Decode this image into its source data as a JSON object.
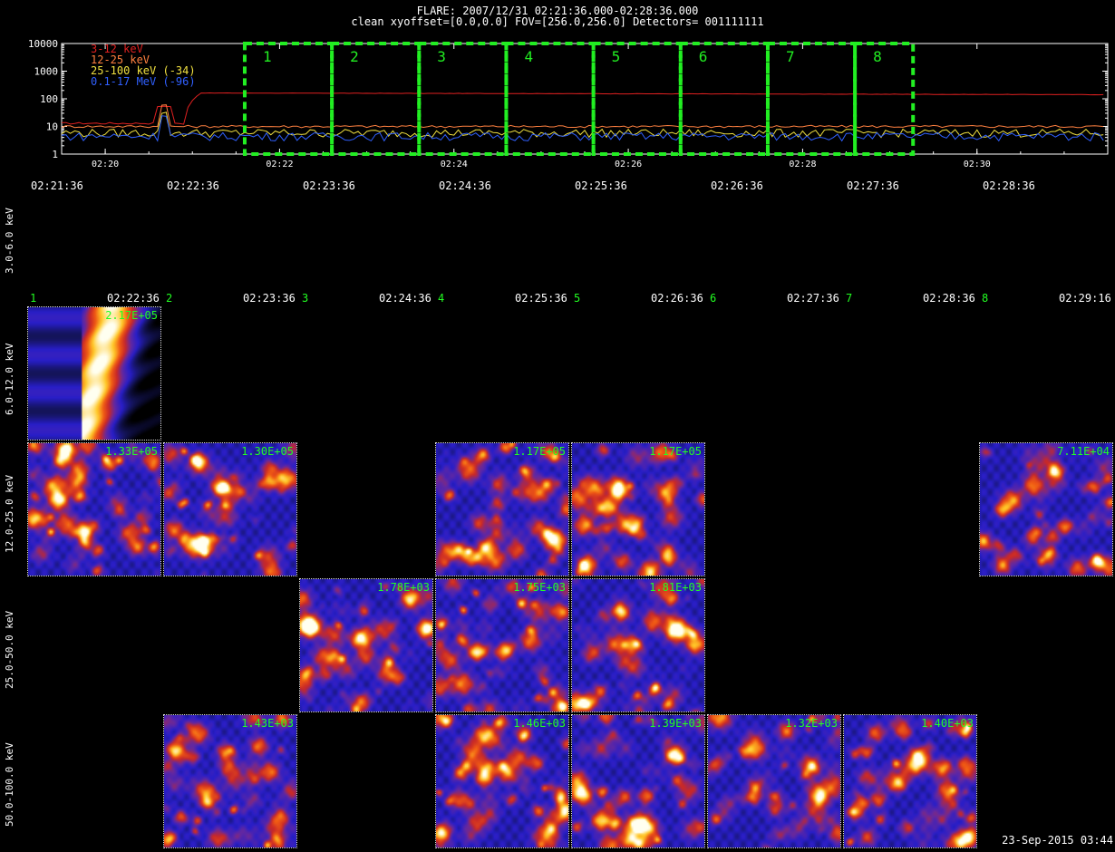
{
  "header": {
    "line1": "FLARE: 2007/12/31 02:21:36.000-02:28:36.000",
    "line2": "clean   xyoffset=[0.0,0.0]   FOV=[256.0,256.0]   Detectors= 001111111"
  },
  "lightcurve": {
    "y_ticks": [
      "10000",
      "1000",
      "100",
      "10",
      "1"
    ],
    "x_ticks": [
      "02:20",
      "02:22",
      "02:24",
      "02:26",
      "02:28",
      "02:30"
    ],
    "x_range": [
      "02:19:30",
      "02:31:30"
    ],
    "y_scale": "log",
    "y_range": [
      1,
      10000
    ],
    "legend": [
      {
        "label": "3-12 keV",
        "color": "#e02020"
      },
      {
        "label": "12-25 keV",
        "color": "#ff8040"
      },
      {
        "label": "25-100 keV (-34)",
        "color": "#f0e040"
      },
      {
        "label": "0.1-17 MeV (-96)",
        "color": "#3060ff"
      }
    ],
    "interval_color": "#22ee22",
    "interval_labels": [
      "1",
      "2",
      "3",
      "4",
      "5",
      "6",
      "7",
      "8"
    ]
  },
  "time_axis_top": [
    "02:21:36",
    "02:22:36",
    "02:23:36",
    "02:24:36",
    "02:25:36",
    "02:26:36",
    "02:27:36",
    "02:28:36"
  ],
  "segments": [
    {
      "num": "1",
      "end": "02:22:36"
    },
    {
      "num": "2",
      "end": "02:23:36"
    },
    {
      "num": "3",
      "end": "02:24:36"
    },
    {
      "num": "4",
      "end": "02:25:36"
    },
    {
      "num": "5",
      "end": "02:26:36"
    },
    {
      "num": "6",
      "end": "02:27:36"
    },
    {
      "num": "7",
      "end": "02:28:36"
    },
    {
      "num": "8",
      "end": "02:29:16"
    }
  ],
  "energy_rows": [
    "3.0-6.0 keV",
    "6.0-12.0 keV",
    "12.0-25.0 keV",
    "25.0-50.0 keV",
    "50.0-100.0 keV"
  ],
  "images": [
    {
      "row": 1,
      "col": 0,
      "peak": "2.17E+05",
      "kind": "ridge"
    },
    {
      "row": 2,
      "col": 0,
      "peak": "1.33E+05",
      "kind": "noise"
    },
    {
      "row": 2,
      "col": 1,
      "peak": "1.30E+05",
      "kind": "noise"
    },
    {
      "row": 2,
      "col": 3,
      "peak": "1.17E+05",
      "kind": "noise"
    },
    {
      "row": 2,
      "col": 4,
      "peak": "1.17E+05",
      "kind": "noise"
    },
    {
      "row": 2,
      "col": 7,
      "peak": "7.11E+04",
      "kind": "noise"
    },
    {
      "row": 3,
      "col": 2,
      "peak": "1.78E+03",
      "kind": "noise"
    },
    {
      "row": 3,
      "col": 3,
      "peak": "1.75E+03",
      "kind": "noise"
    },
    {
      "row": 3,
      "col": 4,
      "peak": "1.81E+03",
      "kind": "noise"
    },
    {
      "row": 4,
      "col": 1,
      "peak": "1.43E+03",
      "kind": "noise"
    },
    {
      "row": 4,
      "col": 3,
      "peak": "1.46E+03",
      "kind": "noise"
    },
    {
      "row": 4,
      "col": 4,
      "peak": "1.39E+03",
      "kind": "noise"
    },
    {
      "row": 4,
      "col": 5,
      "peak": "1.32E+03",
      "kind": "noise"
    },
    {
      "row": 4,
      "col": 6,
      "peak": "1.40E+03",
      "kind": "noise"
    }
  ],
  "footer": {
    "stamp": "23-Sep-2015 03:44"
  }
}
